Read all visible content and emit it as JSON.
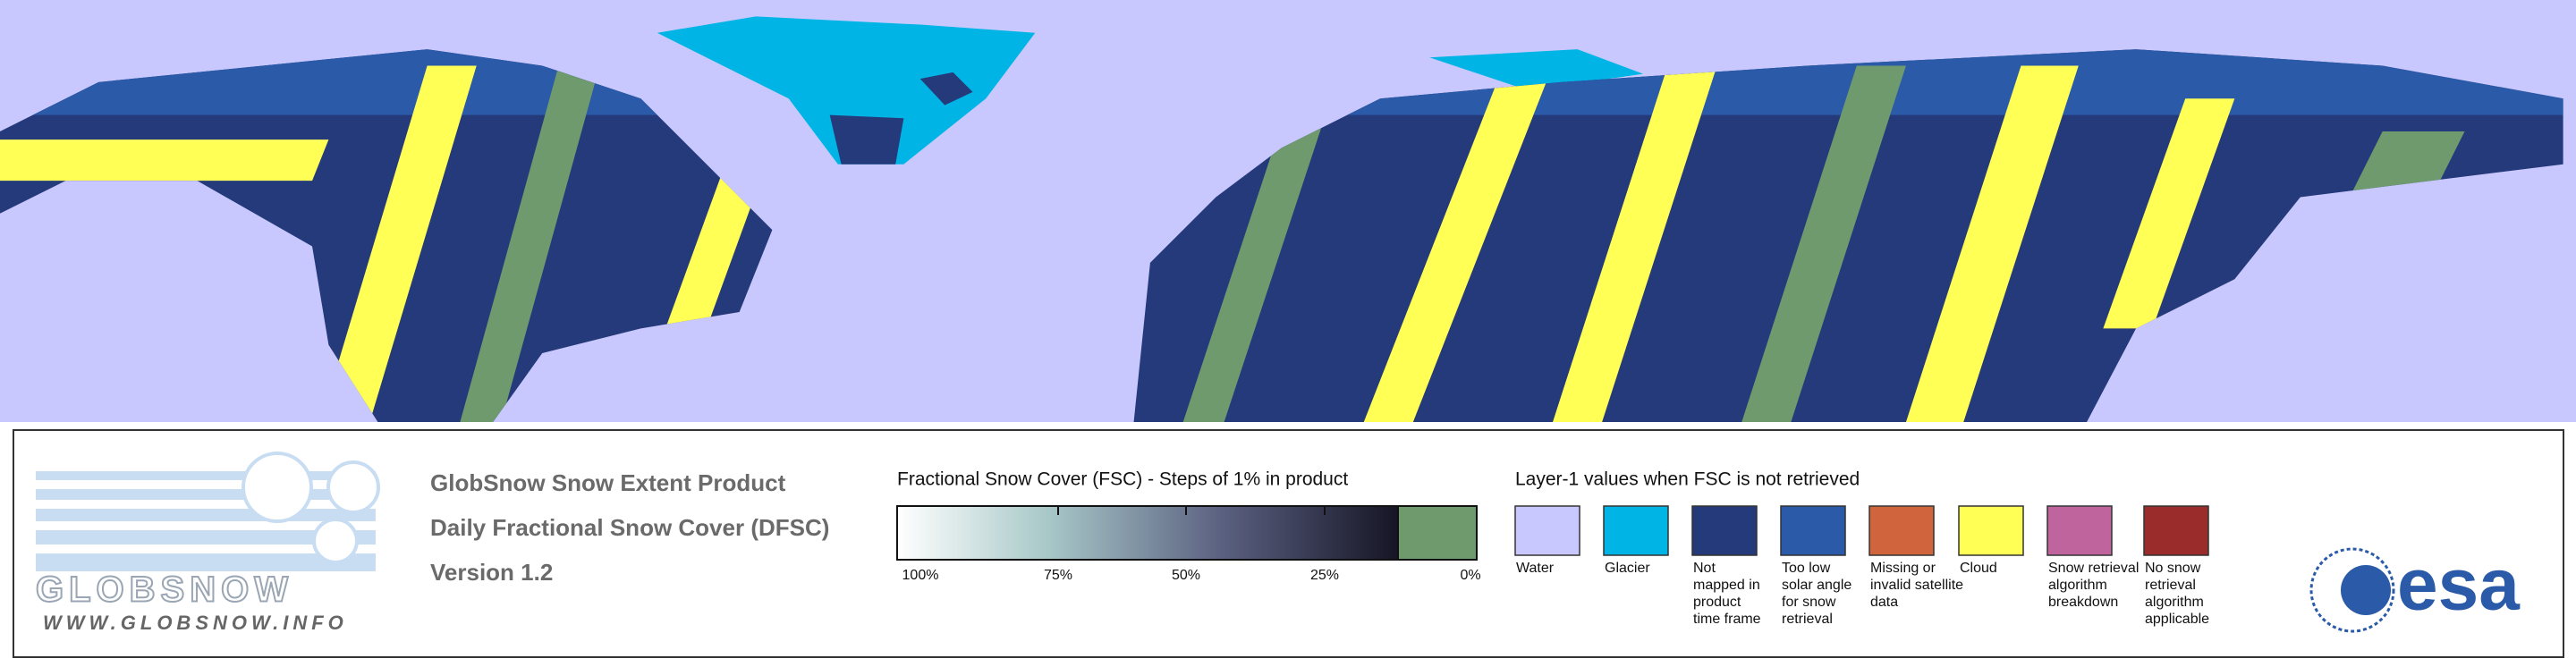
{
  "logo": {
    "name": "GLOBSNOW",
    "url": "WWW.GLOBSNOW.INFO"
  },
  "titles": [
    "GlobSnow Snow Extent Product",
    "Daily Fractional Snow Cover (DFSC)",
    "Version 1.2"
  ],
  "colorbar": {
    "label": "Fractional Snow Cover (FSC) - Steps of 1% in product",
    "ticks": [
      "100%",
      "75%",
      "50%",
      "25%",
      "0%"
    ],
    "zero_color": "#6e9a6e"
  },
  "layer_legend": {
    "title": "Layer-1 values when FSC is not retrieved",
    "items": [
      {
        "color": "#c8c8ff",
        "lines": [
          "Water"
        ]
      },
      {
        "color": "#00b4e6",
        "lines": [
          "Glacier"
        ]
      },
      {
        "color": "#253a7a",
        "lines": [
          "Not",
          "mapped in",
          "product",
          "time frame"
        ]
      },
      {
        "color": "#2a5aa8",
        "lines": [
          "Too low",
          "solar angle",
          "for snow",
          "retrieval"
        ]
      },
      {
        "color": "#d0643c",
        "lines": [
          "Missing or",
          "invalid satellite",
          "data"
        ]
      },
      {
        "color": "#ffff55",
        "lines": [
          "Cloud"
        ]
      },
      {
        "color": "#c0649e",
        "lines": [
          "Snow retrieval",
          "algorithm",
          "breakdown"
        ]
      },
      {
        "color": "#9a2c2c",
        "lines": [
          "No snow",
          "retrieval",
          "algorithm",
          "applicable"
        ]
      }
    ]
  },
  "esa": "esa"
}
